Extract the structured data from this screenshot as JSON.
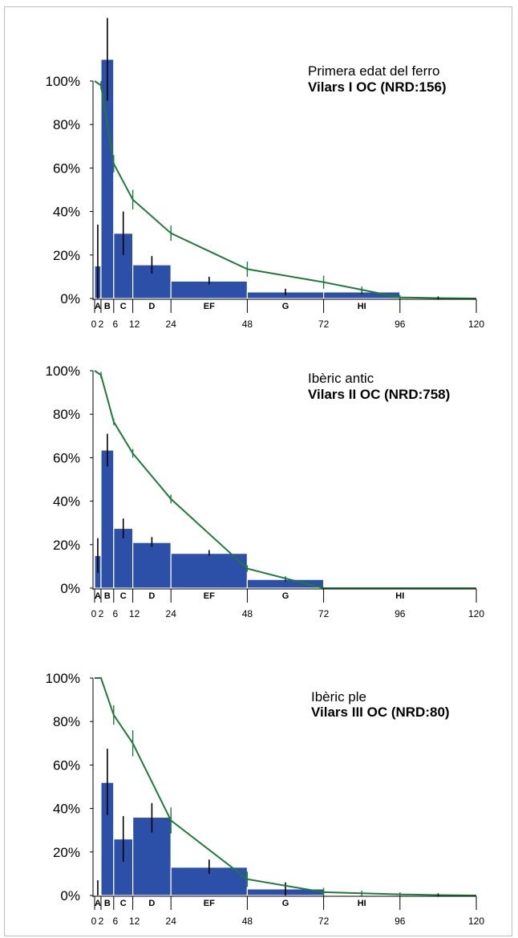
{
  "colors": {
    "bar": "#2c4fa8",
    "curve": "#1f7a3a",
    "axis": "#000000"
  },
  "chart_data": [
    {
      "type": "bar",
      "title": "Primera edat del ferro",
      "subtitle": "Vilars I OC (NRD:156)",
      "y_ticks": [
        "0%",
        "20%",
        "40%",
        "60%",
        "80%",
        "100%"
      ],
      "ylim": [
        0,
        1.0
      ],
      "xlim": [
        0,
        120
      ],
      "x_ticks": [
        0,
        2,
        6,
        12,
        24,
        48,
        72,
        96,
        120
      ],
      "age_classes": [
        {
          "label": "A",
          "start": 0,
          "end": 2
        },
        {
          "label": "B",
          "start": 2,
          "end": 6
        },
        {
          "label": "C",
          "start": 6,
          "end": 12
        },
        {
          "label": "D",
          "start": 12,
          "end": 24
        },
        {
          "label": "EF",
          "start": 24,
          "end": 48
        },
        {
          "label": "G",
          "start": 48,
          "end": 72
        },
        {
          "label": "HI",
          "start": 72,
          "end": 96
        }
      ],
      "bars": [
        {
          "start": 0,
          "end": 2,
          "value": 0.15,
          "err_low": 0.0,
          "err_high": 0.34
        },
        {
          "start": 2,
          "end": 6,
          "value": 1.1,
          "err_low": 0.91,
          "err_high": 1.29
        },
        {
          "start": 6,
          "end": 12,
          "value": 0.3,
          "err_low": 0.2,
          "err_high": 0.4
        },
        {
          "start": 12,
          "end": 24,
          "value": 0.155,
          "err_low": 0.115,
          "err_high": 0.195
        },
        {
          "start": 24,
          "end": 48,
          "value": 0.08,
          "err_low": 0.065,
          "err_high": 0.1
        },
        {
          "start": 48,
          "end": 72,
          "value": 0.03,
          "err_low": 0.015,
          "err_high": 0.045
        },
        {
          "start": 72,
          "end": 96,
          "value": 0.03,
          "err_low": 0.02,
          "err_high": 0.045
        }
      ],
      "survival": [
        {
          "x": 0,
          "y": 1.0,
          "err": 0.0
        },
        {
          "x": 2,
          "y": 0.98,
          "err": 0.02
        },
        {
          "x": 6,
          "y": 0.62,
          "err": 0.04
        },
        {
          "x": 12,
          "y": 0.455,
          "err": 0.045
        },
        {
          "x": 24,
          "y": 0.3,
          "err": 0.035
        },
        {
          "x": 48,
          "y": 0.135,
          "err": 0.035
        },
        {
          "x": 72,
          "y": 0.075,
          "err": 0.03
        },
        {
          "x": 84,
          "y": 0.04,
          "err": 0.015
        },
        {
          "x": 96,
          "y": 0.005,
          "err": 0.01
        },
        {
          "x": 108,
          "y": 0.002,
          "err": 0.008
        },
        {
          "x": 120,
          "y": 0.0,
          "err": 0.0
        }
      ]
    },
    {
      "type": "bar",
      "title": "Ibèric antic",
      "subtitle": "Vilars II OC (NRD:758)",
      "y_ticks": [
        "0%",
        "20%",
        "40%",
        "60%",
        "80%",
        "100%"
      ],
      "ylim": [
        0,
        1.0
      ],
      "xlim": [
        0,
        120
      ],
      "x_ticks": [
        0,
        2,
        6,
        12,
        24,
        48,
        72,
        96,
        120
      ],
      "age_classes": [
        {
          "label": "A",
          "start": 0,
          "end": 2
        },
        {
          "label": "B",
          "start": 2,
          "end": 6
        },
        {
          "label": "C",
          "start": 6,
          "end": 12
        },
        {
          "label": "D",
          "start": 12,
          "end": 24
        },
        {
          "label": "EF",
          "start": 24,
          "end": 48
        },
        {
          "label": "G",
          "start": 48,
          "end": 72
        },
        {
          "label": "HI",
          "start": 72,
          "end": 120
        }
      ],
      "bars": [
        {
          "start": 0,
          "end": 2,
          "value": 0.15,
          "err_low": 0.07,
          "err_high": 0.23
        },
        {
          "start": 2,
          "end": 6,
          "value": 0.635,
          "err_low": 0.56,
          "err_high": 0.71
        },
        {
          "start": 6,
          "end": 12,
          "value": 0.275,
          "err_low": 0.23,
          "err_high": 0.32
        },
        {
          "start": 12,
          "end": 24,
          "value": 0.21,
          "err_low": 0.19,
          "err_high": 0.235
        },
        {
          "start": 24,
          "end": 48,
          "value": 0.16,
          "err_low": 0.15,
          "err_high": 0.175
        },
        {
          "start": 48,
          "end": 72,
          "value": 0.04,
          "err_low": 0.03,
          "err_high": 0.05
        }
      ],
      "survival": [
        {
          "x": 0,
          "y": 1.0,
          "err": 0.0
        },
        {
          "x": 2,
          "y": 0.98,
          "err": 0.015
        },
        {
          "x": 6,
          "y": 0.765,
          "err": 0.015
        },
        {
          "x": 12,
          "y": 0.62,
          "err": 0.02
        },
        {
          "x": 24,
          "y": 0.41,
          "err": 0.02
        },
        {
          "x": 48,
          "y": 0.09,
          "err": 0.015
        },
        {
          "x": 60,
          "y": 0.045,
          "err": 0.01
        },
        {
          "x": 72,
          "y": 0.0,
          "err": 0.005
        },
        {
          "x": 84,
          "y": 0.0,
          "err": 0.003
        },
        {
          "x": 96,
          "y": 0.0,
          "err": 0.003
        },
        {
          "x": 108,
          "y": 0.0,
          "err": 0.0
        },
        {
          "x": 120,
          "y": 0.0,
          "err": 0.0
        }
      ]
    },
    {
      "type": "bar",
      "title": "Ibèric ple",
      "subtitle": "Vilars III OC (NRD:80)",
      "y_ticks": [
        "0%",
        "20%",
        "40%",
        "60%",
        "80%",
        "100%"
      ],
      "ylim": [
        0,
        1.0
      ],
      "xlim": [
        0,
        120
      ],
      "x_ticks": [
        0,
        2,
        6,
        12,
        24,
        48,
        72,
        96,
        120
      ],
      "age_classes": [
        {
          "label": "A",
          "start": 0,
          "end": 2
        },
        {
          "label": "B",
          "start": 2,
          "end": 6
        },
        {
          "label": "C",
          "start": 6,
          "end": 12
        },
        {
          "label": "D",
          "start": 12,
          "end": 24
        },
        {
          "label": "EF",
          "start": 24,
          "end": 48
        },
        {
          "label": "G",
          "start": 48,
          "end": 72
        },
        {
          "label": "HI",
          "start": 72,
          "end": 96
        }
      ],
      "bars": [
        {
          "start": 0,
          "end": 2,
          "value": 0.0,
          "err_low": 0.0,
          "err_high": 0.07
        },
        {
          "start": 2,
          "end": 6,
          "value": 0.52,
          "err_low": 0.37,
          "err_high": 0.675
        },
        {
          "start": 6,
          "end": 12,
          "value": 0.26,
          "err_low": 0.155,
          "err_high": 0.365
        },
        {
          "start": 12,
          "end": 24,
          "value": 0.36,
          "err_low": 0.29,
          "err_high": 0.425
        },
        {
          "start": 24,
          "end": 48,
          "value": 0.13,
          "err_low": 0.1,
          "err_high": 0.165
        },
        {
          "start": 48,
          "end": 72,
          "value": 0.03,
          "err_low": 0.0,
          "err_high": 0.06
        },
        {
          "start": 72,
          "end": 96,
          "value": 0.0,
          "err_low": 0.0,
          "err_high": 0.0
        }
      ],
      "survival": [
        {
          "x": 0,
          "y": 1.0,
          "err": 0.0
        },
        {
          "x": 2,
          "y": 1.0,
          "err": 0.0
        },
        {
          "x": 6,
          "y": 0.83,
          "err": 0.045
        },
        {
          "x": 12,
          "y": 0.7,
          "err": 0.06
        },
        {
          "x": 24,
          "y": 0.345,
          "err": 0.06
        },
        {
          "x": 48,
          "y": 0.075,
          "err": 0.035
        },
        {
          "x": 72,
          "y": 0.015,
          "err": 0.02
        },
        {
          "x": 84,
          "y": 0.01,
          "err": 0.012
        },
        {
          "x": 96,
          "y": 0.005,
          "err": 0.01
        },
        {
          "x": 108,
          "y": 0.002,
          "err": 0.008
        },
        {
          "x": 120,
          "y": 0.0,
          "err": 0.0
        }
      ]
    }
  ]
}
